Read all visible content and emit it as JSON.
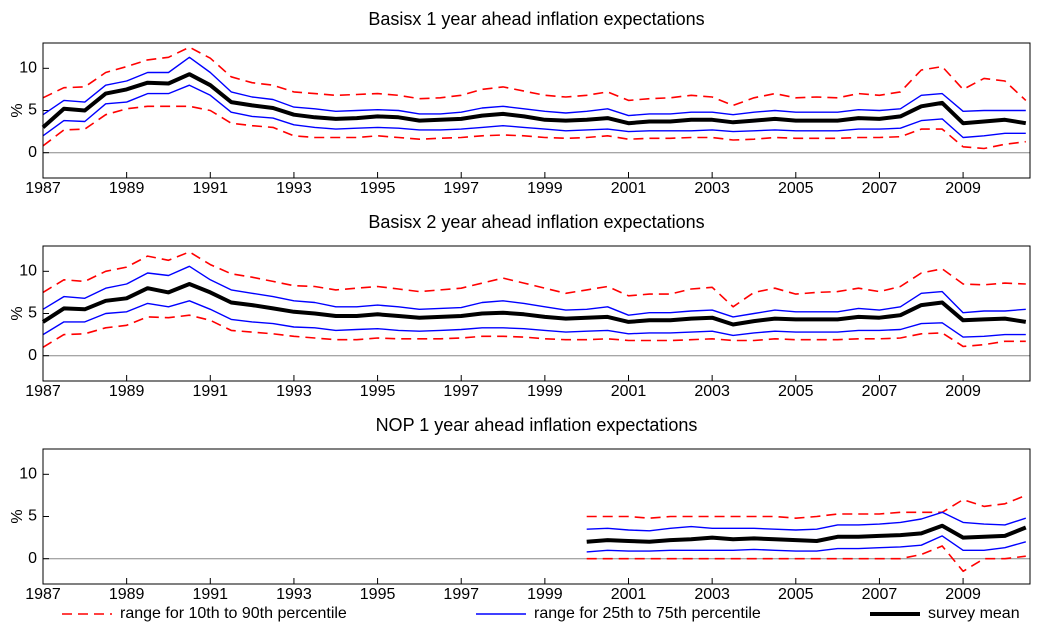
{
  "legend": [
    {
      "name": "range for 10th to 90th percentile",
      "color": "#ff0000",
      "dash": "10 6",
      "width": 1.6,
      "lines": [
        "p10",
        "p90"
      ]
    },
    {
      "name": "range for 25th to 75th percentile",
      "color": "#0000ff",
      "dash": "none",
      "width": 1.4,
      "lines": [
        "p25",
        "p75"
      ]
    },
    {
      "name": "survey mean",
      "color": "#000000",
      "dash": "none",
      "width": 4,
      "lines": [
        "mean"
      ]
    }
  ],
  "chart_data": [
    {
      "type": "line",
      "title": "Basisx 1 year ahead inflation expectations",
      "ylabel": "%",
      "x": [
        1987,
        1987.5,
        1988,
        1988.5,
        1989,
        1989.5,
        1990,
        1990.5,
        1991,
        1991.5,
        1992,
        1992.5,
        1993,
        1993.5,
        1994,
        1994.5,
        1995,
        1995.5,
        1996,
        1996.5,
        1997,
        1997.5,
        1998,
        1998.5,
        1999,
        1999.5,
        2000,
        2000.5,
        2001,
        2001.5,
        2002,
        2002.5,
        2003,
        2003.5,
        2004,
        2004.5,
        2005,
        2005.5,
        2006,
        2006.5,
        2007,
        2007.5,
        2008,
        2008.5,
        2009,
        2009.5,
        2010,
        2010.5
      ],
      "xlim": [
        1987,
        2010.6
      ],
      "xticks": [
        1987,
        1989,
        1991,
        1993,
        1995,
        1997,
        1999,
        2001,
        2003,
        2005,
        2007,
        2009
      ],
      "ylim": [
        -3,
        13
      ],
      "yticks": [
        0,
        5,
        10
      ],
      "lines": {
        "p10": [
          0.8,
          2.7,
          2.8,
          4.5,
          5.2,
          5.5,
          5.5,
          5.5,
          5.0,
          3.5,
          3.2,
          3.0,
          2.0,
          1.8,
          1.8,
          1.8,
          2.0,
          1.8,
          1.6,
          1.7,
          1.8,
          2.0,
          2.1,
          2.0,
          1.8,
          1.7,
          1.8,
          2.0,
          1.6,
          1.7,
          1.7,
          1.8,
          1.8,
          1.5,
          1.6,
          1.8,
          1.7,
          1.7,
          1.7,
          1.8,
          1.8,
          1.9,
          2.8,
          2.8,
          0.7,
          0.5,
          1.0,
          1.3
        ],
        "p25": [
          2.0,
          3.8,
          3.7,
          5.8,
          6.0,
          7.0,
          7.0,
          8.0,
          6.8,
          4.8,
          4.3,
          4.1,
          3.3,
          3.0,
          2.8,
          2.9,
          3.0,
          2.9,
          2.7,
          2.7,
          2.8,
          3.0,
          3.2,
          3.0,
          2.8,
          2.6,
          2.7,
          2.8,
          2.5,
          2.6,
          2.6,
          2.6,
          2.7,
          2.5,
          2.6,
          2.7,
          2.6,
          2.6,
          2.6,
          2.8,
          2.8,
          2.9,
          3.8,
          4.0,
          1.8,
          2.0,
          2.3,
          2.3
        ],
        "mean": [
          3.0,
          5.2,
          5.0,
          7.0,
          7.5,
          8.3,
          8.2,
          9.3,
          8.0,
          6.0,
          5.6,
          5.3,
          4.5,
          4.2,
          4.0,
          4.1,
          4.3,
          4.2,
          3.8,
          3.9,
          4.0,
          4.4,
          4.6,
          4.3,
          3.9,
          3.8,
          3.9,
          4.1,
          3.5,
          3.7,
          3.7,
          3.9,
          3.9,
          3.6,
          3.8,
          4.0,
          3.8,
          3.8,
          3.8,
          4.1,
          4.0,
          4.3,
          5.5,
          5.9,
          3.5,
          3.7,
          3.9,
          3.5
        ],
        "p75": [
          4.5,
          6.2,
          6.0,
          8.0,
          8.5,
          9.5,
          9.5,
          11.3,
          9.5,
          7.2,
          6.6,
          6.3,
          5.4,
          5.2,
          4.9,
          5.0,
          5.1,
          5.0,
          4.6,
          4.6,
          4.8,
          5.3,
          5.5,
          5.2,
          4.9,
          4.7,
          4.9,
          5.2,
          4.4,
          4.6,
          4.6,
          4.8,
          4.8,
          4.5,
          4.8,
          5.0,
          4.8,
          4.8,
          4.8,
          5.1,
          5.0,
          5.2,
          6.8,
          7.0,
          4.9,
          5.0,
          5.0,
          5.0
        ],
        "p90": [
          6.5,
          7.7,
          7.8,
          9.5,
          10.2,
          11.0,
          11.3,
          12.5,
          11.2,
          9.0,
          8.3,
          8.0,
          7.2,
          7.0,
          6.8,
          6.9,
          7.0,
          6.8,
          6.4,
          6.5,
          6.8,
          7.5,
          7.8,
          7.3,
          6.8,
          6.6,
          6.8,
          7.2,
          6.2,
          6.4,
          6.5,
          6.8,
          6.6,
          5.6,
          6.5,
          7.0,
          6.5,
          6.6,
          6.5,
          7.0,
          6.8,
          7.2,
          9.8,
          10.2,
          7.5,
          8.8,
          8.5,
          6.2
        ]
      }
    },
    {
      "type": "line",
      "title": "Basisx 2 year ahead inflation expectations",
      "ylabel": "%",
      "x": [
        1987,
        1987.5,
        1988,
        1988.5,
        1989,
        1989.5,
        1990,
        1990.5,
        1991,
        1991.5,
        1992,
        1992.5,
        1993,
        1993.5,
        1994,
        1994.5,
        1995,
        1995.5,
        1996,
        1996.5,
        1997,
        1997.5,
        1998,
        1998.5,
        1999,
        1999.5,
        2000,
        2000.5,
        2001,
        2001.5,
        2002,
        2002.5,
        2003,
        2003.5,
        2004,
        2004.5,
        2005,
        2005.5,
        2006,
        2006.5,
        2007,
        2007.5,
        2008,
        2008.5,
        2009,
        2009.5,
        2010,
        2010.5
      ],
      "xlim": [
        1987,
        2010.6
      ],
      "xticks": [
        1987,
        1989,
        1991,
        1993,
        1995,
        1997,
        1999,
        2001,
        2003,
        2005,
        2007,
        2009
      ],
      "ylim": [
        -3,
        13
      ],
      "yticks": [
        0,
        5,
        10
      ],
      "lines": {
        "p10": [
          1.0,
          2.5,
          2.6,
          3.3,
          3.6,
          4.6,
          4.5,
          4.8,
          4.2,
          3.0,
          2.8,
          2.6,
          2.3,
          2.1,
          1.9,
          1.9,
          2.1,
          2.0,
          2.0,
          2.0,
          2.1,
          2.3,
          2.3,
          2.2,
          2.0,
          1.9,
          1.9,
          2.0,
          1.8,
          1.8,
          1.8,
          1.9,
          2.0,
          1.8,
          1.8,
          2.0,
          1.9,
          1.9,
          1.9,
          2.0,
          2.0,
          2.1,
          2.6,
          2.7,
          1.1,
          1.3,
          1.7,
          1.7
        ],
        "p25": [
          2.5,
          4.0,
          4.0,
          5.0,
          5.2,
          6.2,
          5.8,
          6.5,
          5.5,
          4.3,
          4.0,
          3.8,
          3.4,
          3.3,
          3.0,
          3.1,
          3.2,
          3.0,
          2.9,
          3.0,
          3.1,
          3.3,
          3.3,
          3.2,
          3.0,
          2.8,
          2.9,
          3.0,
          2.6,
          2.7,
          2.7,
          2.8,
          2.9,
          2.4,
          2.7,
          2.9,
          2.8,
          2.8,
          2.8,
          3.0,
          3.0,
          3.1,
          3.8,
          3.9,
          2.2,
          2.3,
          2.5,
          2.5
        ],
        "mean": [
          4.0,
          5.6,
          5.5,
          6.5,
          6.8,
          8.0,
          7.5,
          8.5,
          7.5,
          6.3,
          6.0,
          5.6,
          5.2,
          5.0,
          4.7,
          4.7,
          4.9,
          4.7,
          4.5,
          4.6,
          4.7,
          5.0,
          5.1,
          4.9,
          4.6,
          4.4,
          4.5,
          4.6,
          4.0,
          4.2,
          4.2,
          4.4,
          4.5,
          3.7,
          4.1,
          4.4,
          4.3,
          4.3,
          4.3,
          4.6,
          4.5,
          4.8,
          6.0,
          6.3,
          4.2,
          4.3,
          4.4,
          4.0
        ],
        "p75": [
          5.5,
          7.0,
          6.8,
          8.0,
          8.5,
          9.8,
          9.5,
          10.6,
          9.0,
          7.8,
          7.4,
          7.0,
          6.5,
          6.3,
          5.8,
          5.8,
          6.0,
          5.8,
          5.5,
          5.6,
          5.7,
          6.3,
          6.5,
          6.2,
          5.8,
          5.4,
          5.5,
          5.8,
          4.8,
          5.1,
          5.1,
          5.3,
          5.4,
          4.6,
          5.0,
          5.4,
          5.2,
          5.2,
          5.2,
          5.6,
          5.4,
          5.8,
          7.4,
          7.6,
          5.1,
          5.3,
          5.3,
          5.5
        ],
        "p90": [
          7.5,
          9.0,
          8.8,
          10.0,
          10.5,
          11.8,
          11.3,
          12.3,
          10.8,
          9.7,
          9.3,
          8.8,
          8.3,
          8.2,
          7.8,
          8.0,
          8.2,
          7.9,
          7.6,
          7.8,
          8.0,
          8.6,
          9.2,
          8.6,
          8.0,
          7.4,
          7.8,
          8.2,
          7.1,
          7.3,
          7.3,
          7.9,
          8.1,
          5.8,
          7.5,
          8.0,
          7.3,
          7.5,
          7.6,
          8.0,
          7.6,
          8.2,
          9.8,
          10.3,
          8.5,
          8.4,
          8.6,
          8.5
        ]
      }
    },
    {
      "type": "line",
      "title": "NOP 1 year ahead inflation expectations",
      "ylabel": "%",
      "x": [
        1987,
        1987.5,
        1988,
        1988.5,
        1989,
        1989.5,
        1990,
        1990.5,
        1991,
        1991.5,
        1992,
        1992.5,
        1993,
        1993.5,
        1994,
        1994.5,
        1995,
        1995.5,
        1996,
        1996.5,
        1997,
        1997.5,
        1998,
        1998.5,
        1999,
        1999.5,
        2000,
        2000.5,
        2001,
        2001.5,
        2002,
        2002.5,
        2003,
        2003.5,
        2004,
        2004.5,
        2005,
        2005.5,
        2006,
        2006.5,
        2007,
        2007.5,
        2008,
        2008.5,
        2009,
        2009.5,
        2010,
        2010.5
      ],
      "xlim": [
        1987,
        2010.6
      ],
      "xticks": [
        1987,
        1989,
        1991,
        1993,
        1995,
        1997,
        1999,
        2001,
        2003,
        2005,
        2007,
        2009
      ],
      "ylim": [
        -3,
        13
      ],
      "yticks": [
        0,
        5,
        10
      ],
      "lines": {
        "p10": [
          null,
          null,
          null,
          null,
          null,
          null,
          null,
          null,
          null,
          null,
          null,
          null,
          null,
          null,
          null,
          null,
          null,
          null,
          null,
          null,
          null,
          null,
          null,
          null,
          null,
          null,
          0.0,
          0.0,
          0.0,
          0.0,
          0.0,
          0.0,
          0.0,
          0.0,
          0.0,
          0.0,
          0.0,
          0.0,
          0.0,
          0.0,
          0.0,
          0.0,
          0.5,
          1.5,
          -1.5,
          0.0,
          0.0,
          0.3
        ],
        "p25": [
          null,
          null,
          null,
          null,
          null,
          null,
          null,
          null,
          null,
          null,
          null,
          null,
          null,
          null,
          null,
          null,
          null,
          null,
          null,
          null,
          null,
          null,
          null,
          null,
          null,
          null,
          0.8,
          1.0,
          0.9,
          0.9,
          1.0,
          1.0,
          1.0,
          1.0,
          1.1,
          1.0,
          0.9,
          0.9,
          1.2,
          1.2,
          1.3,
          1.4,
          1.6,
          2.7,
          1.0,
          1.0,
          1.3,
          2.0
        ],
        "mean": [
          null,
          null,
          null,
          null,
          null,
          null,
          null,
          null,
          null,
          null,
          null,
          null,
          null,
          null,
          null,
          null,
          null,
          null,
          null,
          null,
          null,
          null,
          null,
          null,
          null,
          null,
          2.0,
          2.2,
          2.1,
          2.0,
          2.2,
          2.3,
          2.5,
          2.3,
          2.4,
          2.3,
          2.2,
          2.1,
          2.6,
          2.6,
          2.7,
          2.8,
          3.0,
          3.9,
          2.5,
          2.6,
          2.7,
          3.7
        ],
        "p75": [
          null,
          null,
          null,
          null,
          null,
          null,
          null,
          null,
          null,
          null,
          null,
          null,
          null,
          null,
          null,
          null,
          null,
          null,
          null,
          null,
          null,
          null,
          null,
          null,
          null,
          null,
          3.5,
          3.6,
          3.4,
          3.3,
          3.6,
          3.8,
          3.6,
          3.6,
          3.6,
          3.5,
          3.4,
          3.5,
          4.0,
          4.0,
          4.1,
          4.3,
          4.7,
          5.5,
          4.3,
          4.1,
          4.0,
          4.8
        ],
        "p90": [
          null,
          null,
          null,
          null,
          null,
          null,
          null,
          null,
          null,
          null,
          null,
          null,
          null,
          null,
          null,
          null,
          null,
          null,
          null,
          null,
          null,
          null,
          null,
          null,
          null,
          null,
          5.0,
          5.0,
          5.0,
          4.8,
          5.0,
          5.0,
          5.0,
          5.0,
          5.0,
          5.0,
          4.8,
          5.0,
          5.3,
          5.3,
          5.3,
          5.5,
          5.5,
          5.5,
          7.0,
          6.2,
          6.5,
          7.5
        ]
      }
    }
  ]
}
